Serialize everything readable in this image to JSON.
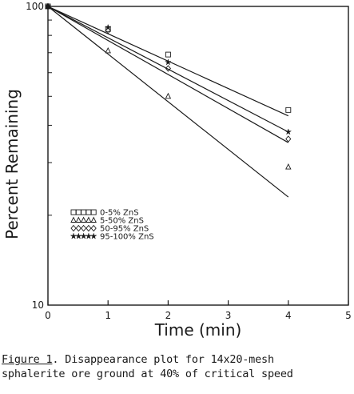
{
  "chart_data": {
    "type": "scatter",
    "title": "",
    "xlabel": "Time (min)",
    "ylabel": "Percent Remaining",
    "xlim": [
      0,
      5
    ],
    "ylim": [
      10,
      100
    ],
    "yscale": "log",
    "grid": false,
    "legend_position": "lower-left",
    "x_ticks": [
      "0",
      "1",
      "2",
      "3",
      "4",
      "5"
    ],
    "y_ticks": [
      "10",
      "100"
    ],
    "series": [
      {
        "name": "0-5% ZnS",
        "marker": "square",
        "points": [
          [
            0,
            100
          ],
          [
            1,
            84
          ],
          [
            2,
            69
          ],
          [
            4,
            45
          ]
        ],
        "fit": [
          [
            0,
            100
          ],
          [
            4,
            43
          ]
        ]
      },
      {
        "name": "5-50% ZnS",
        "marker": "triangle",
        "points": [
          [
            0,
            100
          ],
          [
            1,
            71
          ],
          [
            2,
            50
          ],
          [
            4,
            29
          ]
        ],
        "fit": [
          [
            0,
            100
          ],
          [
            4,
            23
          ]
        ]
      },
      {
        "name": "50-95% ZnS",
        "marker": "diamond",
        "points": [
          [
            0,
            100
          ],
          [
            1,
            83
          ],
          [
            2,
            62
          ],
          [
            4,
            36
          ]
        ],
        "fit": [
          [
            0,
            100
          ],
          [
            4,
            35
          ]
        ]
      },
      {
        "name": "95-100% ZnS",
        "marker": "star",
        "points": [
          [
            0,
            100
          ],
          [
            1,
            85
          ],
          [
            2,
            65
          ],
          [
            4,
            38
          ]
        ],
        "fit": [
          [
            0,
            100
          ],
          [
            4,
            38
          ]
        ]
      }
    ]
  },
  "caption": {
    "label": "Figure 1",
    "line1_rest": ".  Disappearance plot for 14x20-mesh",
    "line2": "sphalerite ore ground at 40% of critical speed"
  }
}
